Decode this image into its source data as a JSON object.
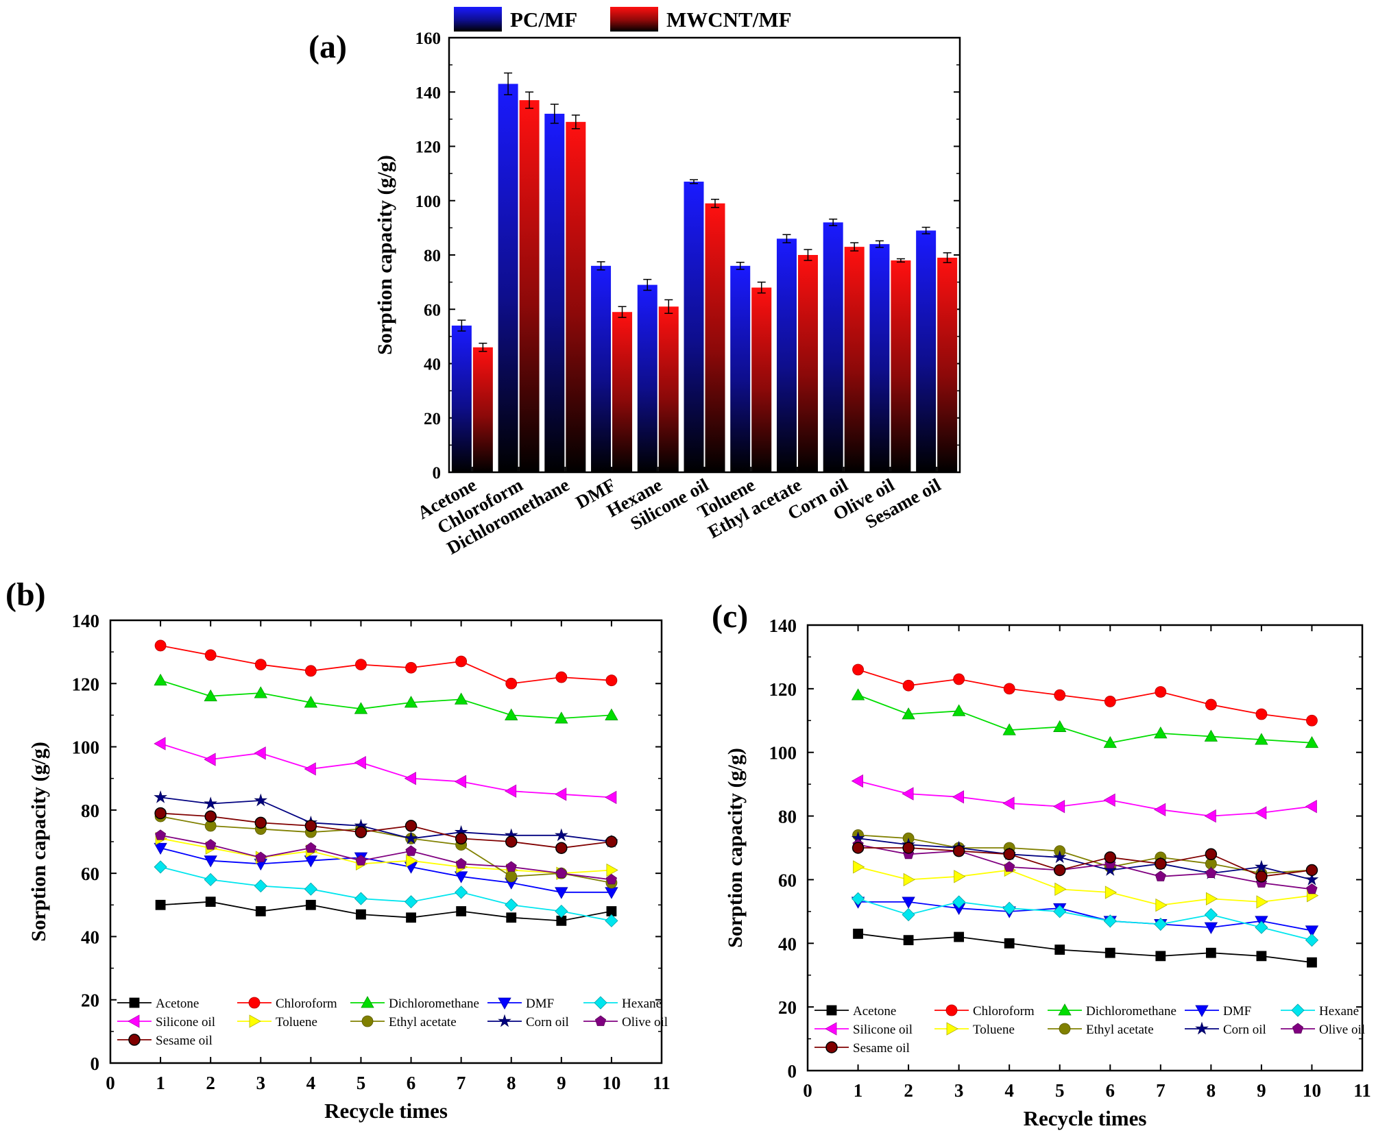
{
  "chart_data": [
    {
      "panel": "(a)",
      "type": "bar",
      "categories": [
        "Acetone",
        "Chloroform",
        "Dichloromethane",
        "DMF",
        "Hexane",
        "Silicone oil",
        "Toluene",
        "Ethyl acetate",
        "Corn oil",
        "Olive oil",
        "Sesame oil"
      ],
      "series": [
        {
          "name": "PC/MF",
          "color": "#1a1aff",
          "values": [
            54,
            143,
            132,
            76,
            69,
            107,
            76,
            86,
            92,
            84,
            89
          ],
          "errors": [
            2,
            4,
            3.5,
            1.5,
            2,
            0.7,
            1.3,
            1.5,
            1.2,
            1.2,
            1.2
          ]
        },
        {
          "name": "MWCNT/MF",
          "color": "#ff1010",
          "values": [
            46,
            137,
            129,
            59,
            61,
            99,
            68,
            80,
            83,
            78,
            79
          ],
          "errors": [
            1.5,
            3,
            2.5,
            2,
            2.5,
            1.5,
            2,
            2,
            1.5,
            0.6,
            1.8
          ]
        }
      ],
      "ylabel": "Sorption capacity (g/g)",
      "ylim": [
        0,
        160
      ],
      "yticks": [
        0,
        20,
        40,
        60,
        80,
        100,
        120,
        140,
        160
      ],
      "legend": "top"
    },
    {
      "panel": "(b)",
      "type": "line",
      "x": [
        1,
        2,
        3,
        4,
        5,
        6,
        7,
        8,
        9,
        10
      ],
      "xlim": [
        0,
        11
      ],
      "xticks": [
        0,
        1,
        2,
        3,
        4,
        5,
        6,
        7,
        8,
        9,
        10,
        11
      ],
      "ylim": [
        0,
        140
      ],
      "yticks": [
        0,
        20,
        40,
        60,
        80,
        100,
        120,
        140
      ],
      "xlabel": "Recycle times",
      "ylabel": "Sorption capacity (g/g)",
      "legend": "bottom",
      "series": [
        {
          "name": "Acetone",
          "color": "#000000",
          "marker": "square",
          "values": [
            50,
            51,
            48,
            50,
            47,
            46,
            48,
            46,
            45,
            48
          ]
        },
        {
          "name": "Chloroform",
          "color": "#ff0000",
          "marker": "circle",
          "values": [
            132,
            129,
            126,
            124,
            126,
            125,
            127,
            120,
            122,
            121
          ]
        },
        {
          "name": "Dichloromethane",
          "color": "#00dd00",
          "marker": "triangle-up",
          "values": [
            121,
            116,
            117,
            114,
            112,
            114,
            115,
            110,
            109,
            110
          ]
        },
        {
          "name": "DMF",
          "color": "#0000ff",
          "marker": "triangle-down",
          "values": [
            68,
            64,
            63,
            64,
            65,
            62,
            59,
            57,
            54,
            54
          ]
        },
        {
          "name": "Hexane",
          "color": "#00e5ee",
          "marker": "diamond",
          "values": [
            62,
            58,
            56,
            55,
            52,
            51,
            54,
            50,
            48,
            45
          ]
        },
        {
          "name": "Silicone oil",
          "color": "#ff00ff",
          "marker": "triangle-left",
          "values": [
            101,
            96,
            98,
            93,
            95,
            90,
            89,
            86,
            85,
            84
          ]
        },
        {
          "name": "Toluene",
          "color": "#ffff00",
          "marker": "triangle-right",
          "values": [
            71,
            68,
            65,
            67,
            63,
            64,
            62,
            61,
            60,
            61
          ]
        },
        {
          "name": "Ethyl acetate",
          "color": "#808000",
          "marker": "circle",
          "values": [
            78,
            75,
            74,
            73,
            74,
            71,
            69,
            59,
            60,
            57
          ]
        },
        {
          "name": "Corn oil",
          "color": "#000080",
          "marker": "star",
          "values": [
            84,
            82,
            83,
            76,
            75,
            71,
            73,
            72,
            72,
            70
          ]
        },
        {
          "name": "Olive oil",
          "color": "#800080",
          "marker": "pentagon",
          "values": [
            72,
            69,
            65,
            68,
            64,
            67,
            63,
            62,
            60,
            58
          ]
        },
        {
          "name": "Sesame oil",
          "color": "#800000",
          "marker": "circle-ring",
          "values": [
            79,
            78,
            76,
            75,
            73,
            75,
            71,
            70,
            68,
            70
          ]
        }
      ]
    },
    {
      "panel": "(c)",
      "type": "line",
      "x": [
        1,
        2,
        3,
        4,
        5,
        6,
        7,
        8,
        9,
        10
      ],
      "xlim": [
        0,
        11
      ],
      "xticks": [
        0,
        1,
        2,
        3,
        4,
        5,
        6,
        7,
        8,
        9,
        10,
        11
      ],
      "ylim": [
        0,
        140
      ],
      "yticks": [
        0,
        20,
        40,
        60,
        80,
        100,
        120,
        140
      ],
      "xlabel": "Recycle times",
      "ylabel": "Sorption capacity (g/g)",
      "legend": "bottom",
      "series": [
        {
          "name": "Acetone",
          "color": "#000000",
          "marker": "square",
          "values": [
            43,
            41,
            42,
            40,
            38,
            37,
            36,
            37,
            36,
            34
          ]
        },
        {
          "name": "Chloroform",
          "color": "#ff0000",
          "marker": "circle",
          "values": [
            126,
            121,
            123,
            120,
            118,
            116,
            119,
            115,
            112,
            110
          ]
        },
        {
          "name": "Dichloromethane",
          "color": "#00dd00",
          "marker": "triangle-up",
          "values": [
            118,
            112,
            113,
            107,
            108,
            103,
            106,
            105,
            104,
            103
          ]
        },
        {
          "name": "DMF",
          "color": "#0000ff",
          "marker": "triangle-down",
          "values": [
            53,
            53,
            51,
            50,
            51,
            47,
            46,
            45,
            47,
            44
          ]
        },
        {
          "name": "Hexane",
          "color": "#00e5ee",
          "marker": "diamond",
          "values": [
            54,
            49,
            53,
            51,
            50,
            47,
            46,
            49,
            45,
            41
          ]
        },
        {
          "name": "Silicone oil",
          "color": "#ff00ff",
          "marker": "triangle-left",
          "values": [
            91,
            87,
            86,
            84,
            83,
            85,
            82,
            80,
            81,
            83
          ]
        },
        {
          "name": "Toluene",
          "color": "#ffff00",
          "marker": "triangle-right",
          "values": [
            64,
            60,
            61,
            63,
            57,
            56,
            52,
            54,
            53,
            55
          ]
        },
        {
          "name": "Ethyl acetate",
          "color": "#808000",
          "marker": "circle",
          "values": [
            74,
            73,
            70,
            70,
            69,
            64,
            67,
            65,
            62,
            63
          ]
        },
        {
          "name": "Corn oil",
          "color": "#000080",
          "marker": "star",
          "values": [
            73,
            71,
            70,
            68,
            67,
            63,
            65,
            62,
            64,
            60
          ]
        },
        {
          "name": "Olive oil",
          "color": "#800080",
          "marker": "pentagon",
          "values": [
            71,
            68,
            69,
            64,
            63,
            65,
            61,
            62,
            59,
            57
          ]
        },
        {
          "name": "Sesame oil",
          "color": "#800000",
          "marker": "circle-ring",
          "values": [
            70,
            70,
            69,
            68,
            63,
            67,
            65,
            68,
            61,
            63
          ]
        }
      ]
    }
  ]
}
